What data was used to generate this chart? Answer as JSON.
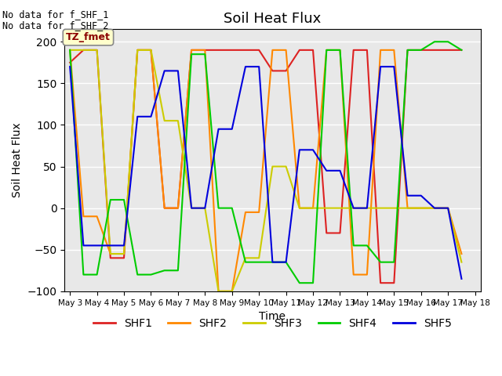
{
  "title": "Soil Heat Flux",
  "xlabel": "Time",
  "ylabel": "Soil Heat Flux",
  "ylim": [
    -100,
    215
  ],
  "yticks": [
    -100,
    -50,
    0,
    50,
    100,
    150,
    200
  ],
  "background_color": "#e8e8e8",
  "annotation_text": "TZ_fmet",
  "no_data_text": [
    "No data for f_SHF_1",
    "No data for f_SHF_2"
  ],
  "x_tick_labels": [
    "May 3",
    "May 4",
    "May 5",
    "May 6",
    "May 7",
    "May 8",
    "May 9",
    "May 10",
    "May 11",
    "May 12",
    "May 13",
    "May 14",
    "May 15",
    "May 16",
    "May 17",
    "May 18"
  ],
  "x_ticks": [
    3,
    4,
    5,
    6,
    7,
    8,
    9,
    10,
    11,
    12,
    13,
    14,
    15,
    16,
    17,
    18
  ],
  "colors": {
    "SHF1": "#dd2222",
    "SHF2": "#ff8800",
    "SHF3": "#cccc00",
    "SHF4": "#00cc00",
    "SHF5": "#0000dd"
  },
  "SHF1_x": [
    3.0,
    3.5,
    4.0,
    4.5,
    5.0,
    5.5,
    6.0,
    6.5,
    7.0,
    7.5,
    8.0,
    8.5,
    9.0,
    9.5,
    10.0,
    10.5,
    11.0,
    11.5,
    12.0,
    12.5,
    13.0,
    13.5,
    14.0,
    14.5,
    15.0,
    15.5,
    16.0,
    16.5,
    17.0,
    17.5
  ],
  "SHF1_y": [
    175,
    190,
    190,
    -60,
    -60,
    190,
    190,
    0,
    0,
    190,
    190,
    190,
    190,
    190,
    190,
    165,
    165,
    190,
    190,
    -30,
    -30,
    190,
    190,
    -90,
    -90,
    190,
    190,
    190,
    190,
    190
  ],
  "SHF2_x": [
    3.0,
    3.5,
    4.0,
    4.5,
    5.0,
    5.5,
    6.0,
    6.5,
    7.0,
    7.5,
    8.0,
    8.5,
    9.0,
    9.5,
    10.0,
    10.5,
    11.0,
    11.5,
    12.0,
    12.5,
    13.0,
    13.5,
    14.0,
    14.5,
    15.0,
    15.5,
    16.0,
    16.5,
    17.0,
    17.5
  ],
  "SHF2_y": [
    190,
    -10,
    -10,
    -55,
    -55,
    190,
    190,
    0,
    0,
    190,
    190,
    -100,
    -100,
    -5,
    -5,
    190,
    190,
    0,
    0,
    190,
    190,
    -80,
    -80,
    190,
    190,
    0,
    0,
    0,
    0,
    -55
  ],
  "SHF3_x": [
    3.0,
    3.5,
    4.0,
    4.5,
    5.0,
    5.5,
    6.0,
    6.5,
    7.0,
    7.5,
    8.0,
    8.5,
    9.0,
    9.5,
    10.0,
    10.5,
    11.0,
    11.5,
    12.0,
    12.5,
    13.0,
    13.5,
    14.0,
    14.5,
    15.0,
    15.5,
    16.0,
    16.5,
    17.0,
    17.5
  ],
  "SHF3_y": [
    190,
    190,
    190,
    -55,
    -55,
    190,
    190,
    105,
    105,
    0,
    0,
    -100,
    -100,
    -60,
    -60,
    50,
    50,
    0,
    0,
    0,
    0,
    0,
    0,
    0,
    0,
    0,
    0,
    0,
    0,
    -65
  ],
  "SHF4_x": [
    3.0,
    3.5,
    4.0,
    4.5,
    5.0,
    5.5,
    6.0,
    6.5,
    7.0,
    7.5,
    8.0,
    8.5,
    9.0,
    9.5,
    10.0,
    10.5,
    11.0,
    11.5,
    12.0,
    12.5,
    13.0,
    13.5,
    14.0,
    14.5,
    15.0,
    15.5,
    16.0,
    16.5,
    17.0,
    17.5
  ],
  "SHF4_y": [
    190,
    -80,
    -80,
    10,
    10,
    -80,
    -80,
    -75,
    -75,
    185,
    185,
    0,
    0,
    -65,
    -65,
    -65,
    -65,
    -90,
    -90,
    190,
    190,
    -45,
    -45,
    -65,
    -65,
    190,
    190,
    200,
    200,
    190
  ],
  "SHF5_x": [
    3.0,
    3.5,
    4.0,
    4.5,
    5.0,
    5.5,
    6.0,
    6.5,
    7.0,
    7.5,
    8.0,
    8.5,
    9.0,
    9.5,
    10.0,
    10.5,
    11.0,
    11.5,
    12.0,
    12.5,
    13.0,
    13.5,
    14.0,
    14.5,
    15.0,
    15.5,
    16.0,
    16.5,
    17.0,
    17.5
  ],
  "SHF5_y": [
    170,
    -45,
    -45,
    -45,
    -45,
    110,
    110,
    165,
    165,
    0,
    0,
    95,
    95,
    170,
    170,
    -65,
    -65,
    70,
    70,
    45,
    45,
    0,
    0,
    170,
    170,
    15,
    15,
    0,
    0,
    -85
  ]
}
